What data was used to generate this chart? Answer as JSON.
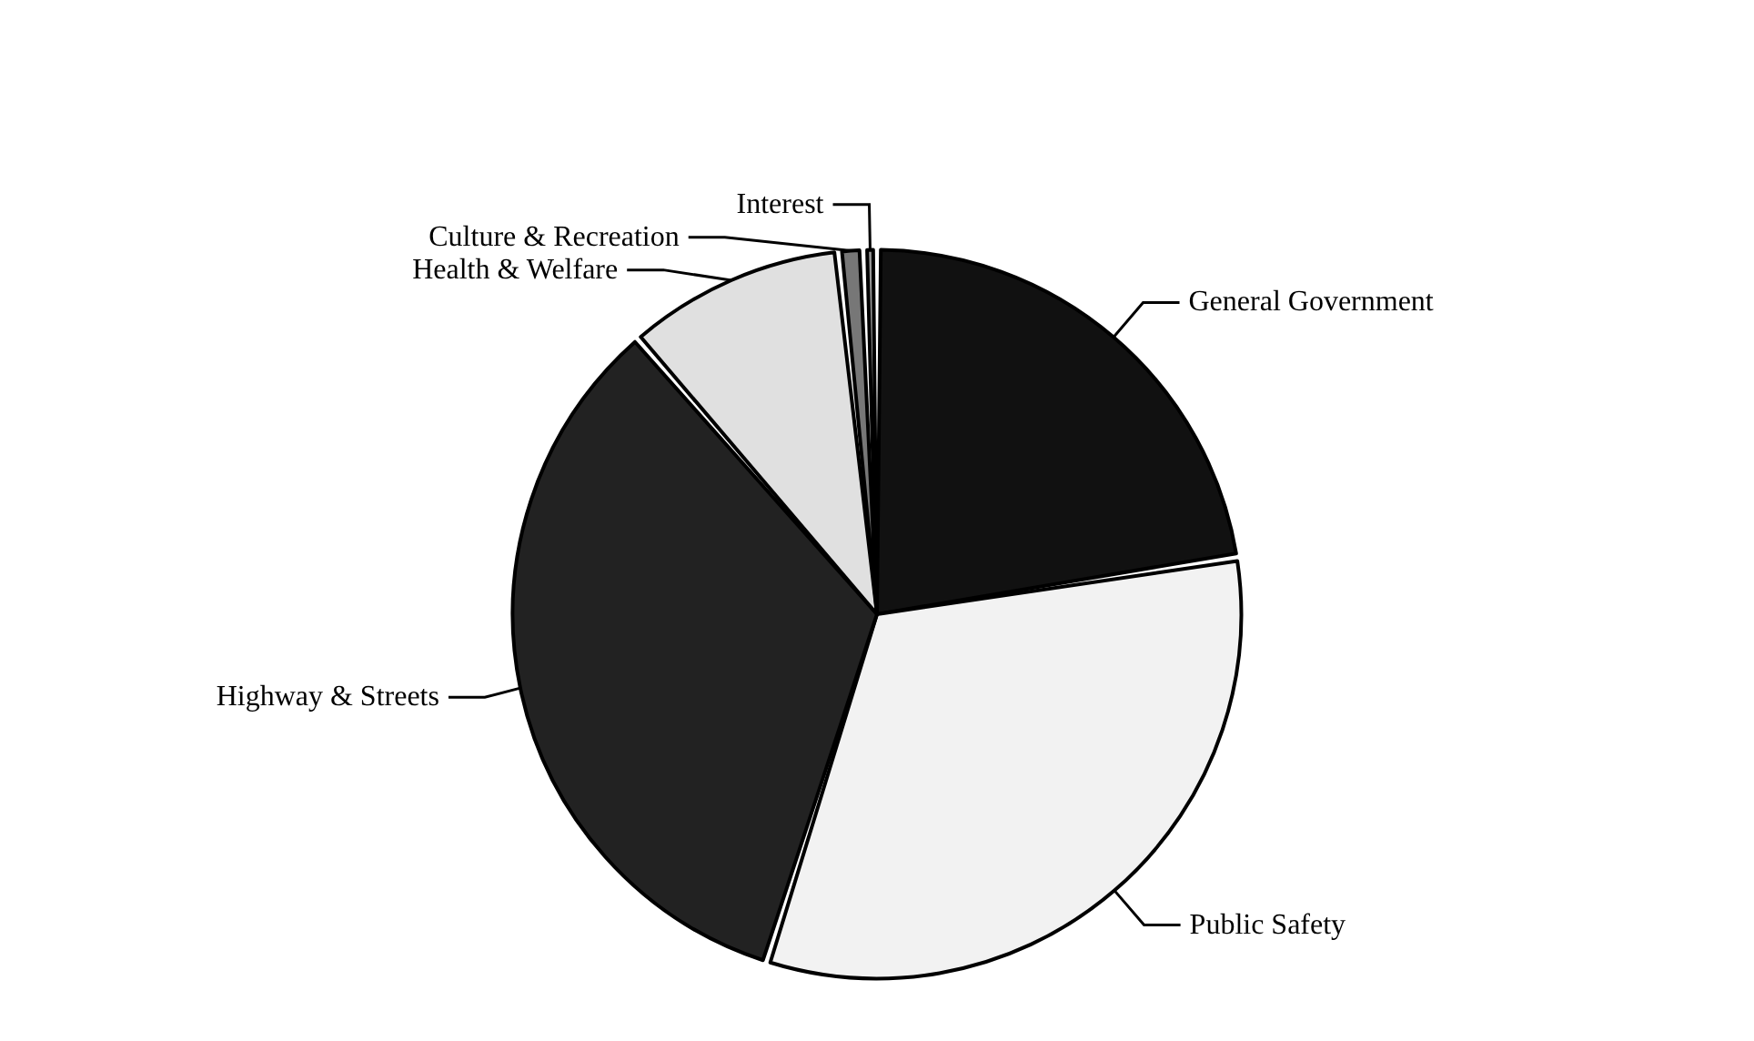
{
  "chart_data": {
    "type": "pie",
    "categories": [
      "General Government",
      "Public Safety",
      "Highway & Streets",
      "Health & Welfare",
      "Culture & Recreation",
      "Interest"
    ],
    "values": [
      22.5,
      32.4,
      33.7,
      9.7,
      1.1,
      0.6
    ],
    "colors": [
      "#111111",
      "#f2f2f2",
      "#222222",
      "#e0e0e0",
      "#777777",
      "#999999"
    ],
    "legend": false
  }
}
